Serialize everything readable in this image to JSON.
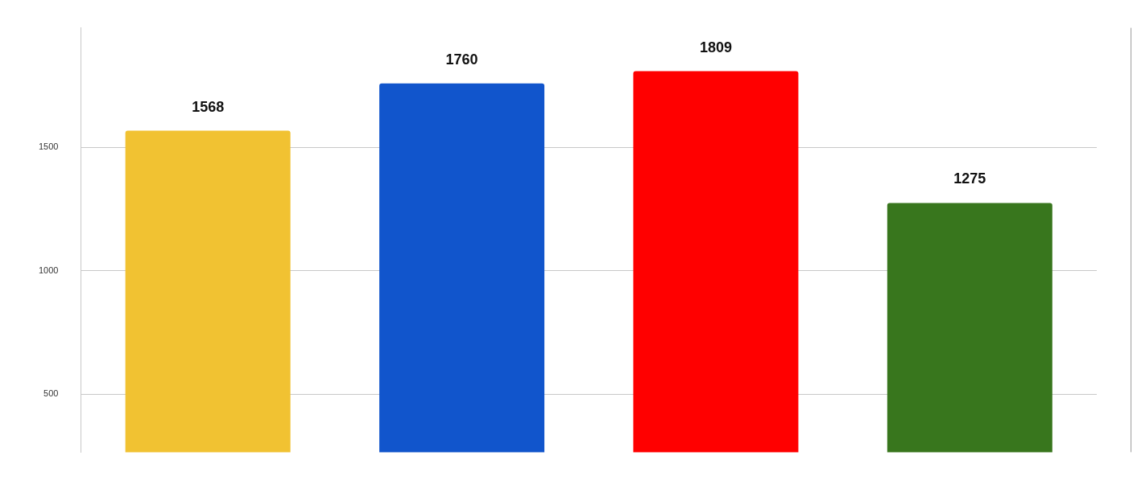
{
  "chart_data": {
    "type": "bar",
    "categories": [
      null,
      null,
      null,
      null
    ],
    "values": [
      1568,
      1760,
      1809,
      1275
    ],
    "colors": [
      "#f1c232",
      "#1155cc",
      "#ff0000",
      "#38761d"
    ],
    "ylim": [
      265,
      1985
    ],
    "yticks": [
      500,
      1000,
      1500
    ],
    "grid": "y",
    "data_labels": true,
    "legend": false
  }
}
